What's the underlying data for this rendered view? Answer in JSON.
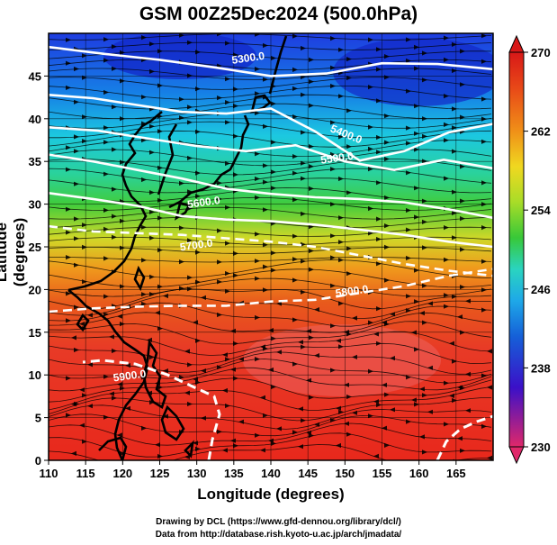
{
  "title": "GSM 00Z25Dec2024 (500.0hPa)",
  "xlabel": "Longitude (degrees)",
  "ylabel": "Latitude  (degrees)",
  "credits": {
    "line1": "Drawing by DCL (https://www.gfd-dennou.org/library/dcl/)",
    "line2": "Data from http://database.rish.kyoto-u.ac.jp/arch/jmadata/"
  },
  "map": {
    "lon_range": [
      110,
      170
    ],
    "lat_range": [
      0,
      50
    ],
    "lon_ticks": [
      "110",
      "115",
      "120",
      "125",
      "130",
      "135",
      "140",
      "145",
      "150",
      "155",
      "160",
      "165"
    ],
    "lat_ticks": [
      "0",
      "5",
      "10",
      "15",
      "20",
      "25",
      "30",
      "35",
      "40",
      "45"
    ]
  },
  "colorbar": {
    "ticks": [
      "270",
      "262",
      "254",
      "246",
      "238",
      "230"
    ],
    "colors": [
      "#e0286a",
      "#3b10c8",
      "#1560d8",
      "#1ea8e8",
      "#2ad4c0",
      "#38c838",
      "#a8dc28",
      "#f0d820",
      "#f09018",
      "#e84818",
      "#d81818"
    ]
  },
  "contours": [
    {
      "label": "5300.0",
      "lat": [
        48.4,
        47.6,
        46.9,
        46.0,
        45.0,
        45.3,
        46.5,
        46.4,
        45.8
      ]
    },
    {
      "label": "5400.0",
      "lat": [
        42.8,
        42.4,
        41.6,
        40.8,
        40.6,
        41.2,
        38.5,
        35.1,
        36.2,
        38.4,
        39.4
      ]
    },
    {
      "label": "5500.0",
      "lat": [
        39.0,
        38.6,
        37.7,
        36.8,
        36.2,
        36.9,
        35.0,
        34.0,
        35.2,
        34.2
      ]
    },
    {
      "label": "5600.0",
      "lat": [
        35.8,
        35.0,
        34.0,
        33.0,
        31.8,
        31.2,
        30.8,
        30.6,
        30.2,
        29.4,
        28.4
      ]
    },
    {
      "label": "5700.0",
      "lat": [
        31.3,
        30.6,
        29.8,
        28.6,
        28.2,
        28.0,
        27.6,
        27.0,
        26.4,
        25.6,
        25.0
      ]
    },
    {
      "label": "5800.0",
      "lat": [
        27.4,
        26.8,
        26.6,
        26.4,
        26.0,
        25.6,
        25.0,
        24.0,
        23.0,
        22.2,
        21.6
      ]
    },
    {
      "label": "5900.0",
      "lat": [
        17.4,
        17.8,
        18.0,
        18.1,
        18.1,
        18.6,
        18.8,
        19.6,
        20.4,
        21.6,
        22.4
      ]
    }
  ]
}
